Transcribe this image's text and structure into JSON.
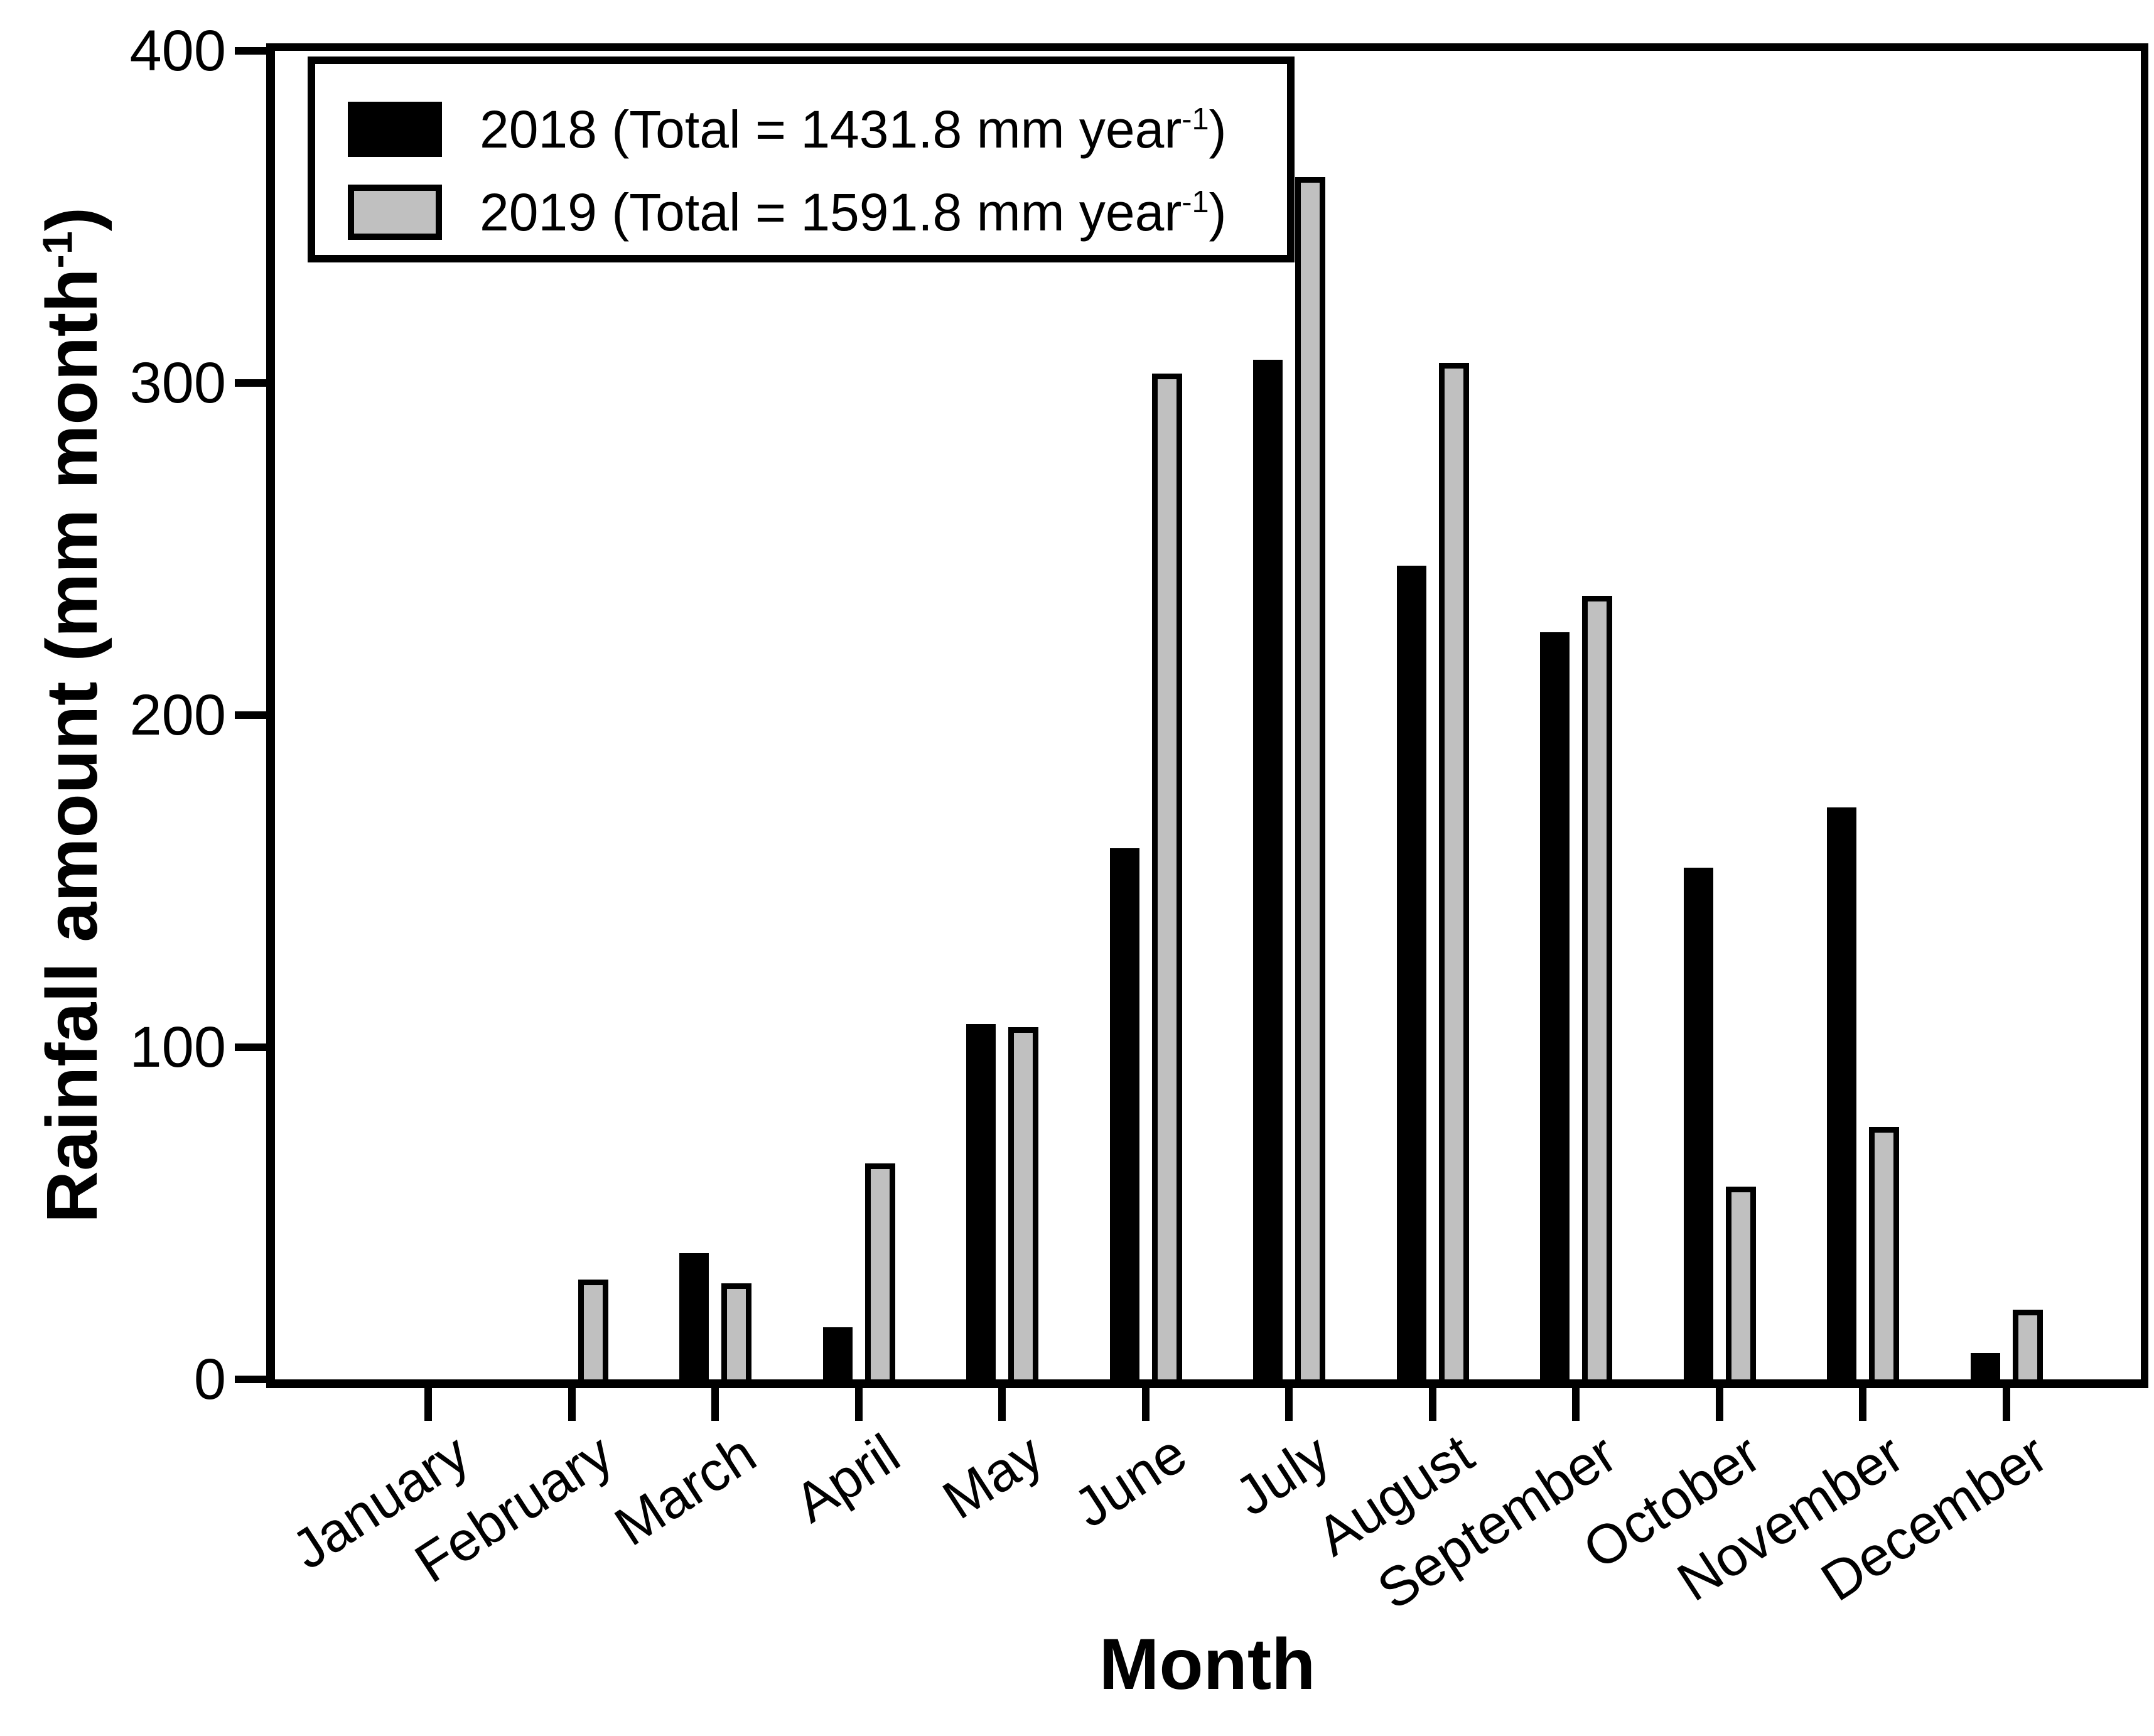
{
  "figure": {
    "background": "#ffffff",
    "bar_color_2018": "#000000",
    "bar_color_2019": "#c0c0c0",
    "frame_color": "#000000"
  },
  "y_axis": {
    "title_prefix": "Rainfall amount (mm month",
    "title_sup": "-1",
    "title_suffix": ")",
    "tick_values": [
      "0",
      "100",
      "200",
      "300",
      "400"
    ],
    "min": 0,
    "max": 400
  },
  "x_axis": {
    "title": "Month"
  },
  "legend": {
    "entry_2018_prefix": "2018 (Total = 1431.8 mm year",
    "entry_2018_sup": "-1",
    "entry_2018_suffix": ")",
    "entry_2019_prefix": "2019 (Total = 1591.8 mm year",
    "entry_2019_sup": "-1",
    "entry_2019_suffix": ")"
  },
  "chart_data": {
    "type": "bar",
    "title": "",
    "xlabel": "Month",
    "ylabel": "Rainfall amount (mm month^-1)",
    "ylim": [
      0,
      400
    ],
    "ytick_step": 100,
    "grid": false,
    "legend_position": "upper-left",
    "categories": [
      "January",
      "February",
      "March",
      "April",
      "May",
      "June",
      "July",
      "August",
      "September",
      "October",
      "November",
      "December"
    ],
    "series": [
      {
        "name": "2018",
        "total_mm_per_year": 1431.8,
        "color": "#000000",
        "values": [
          0,
          0,
          38,
          15.6,
          107,
          160,
          307,
          245,
          225,
          154,
          172.2,
          8
        ]
      },
      {
        "name": "2019",
        "total_mm_per_year": 1591.8,
        "color": "#c0c0c0",
        "values": [
          0,
          30,
          29,
          65,
          106,
          302.8,
          362,
          306,
          236,
          58,
          76,
          21
        ]
      }
    ]
  }
}
